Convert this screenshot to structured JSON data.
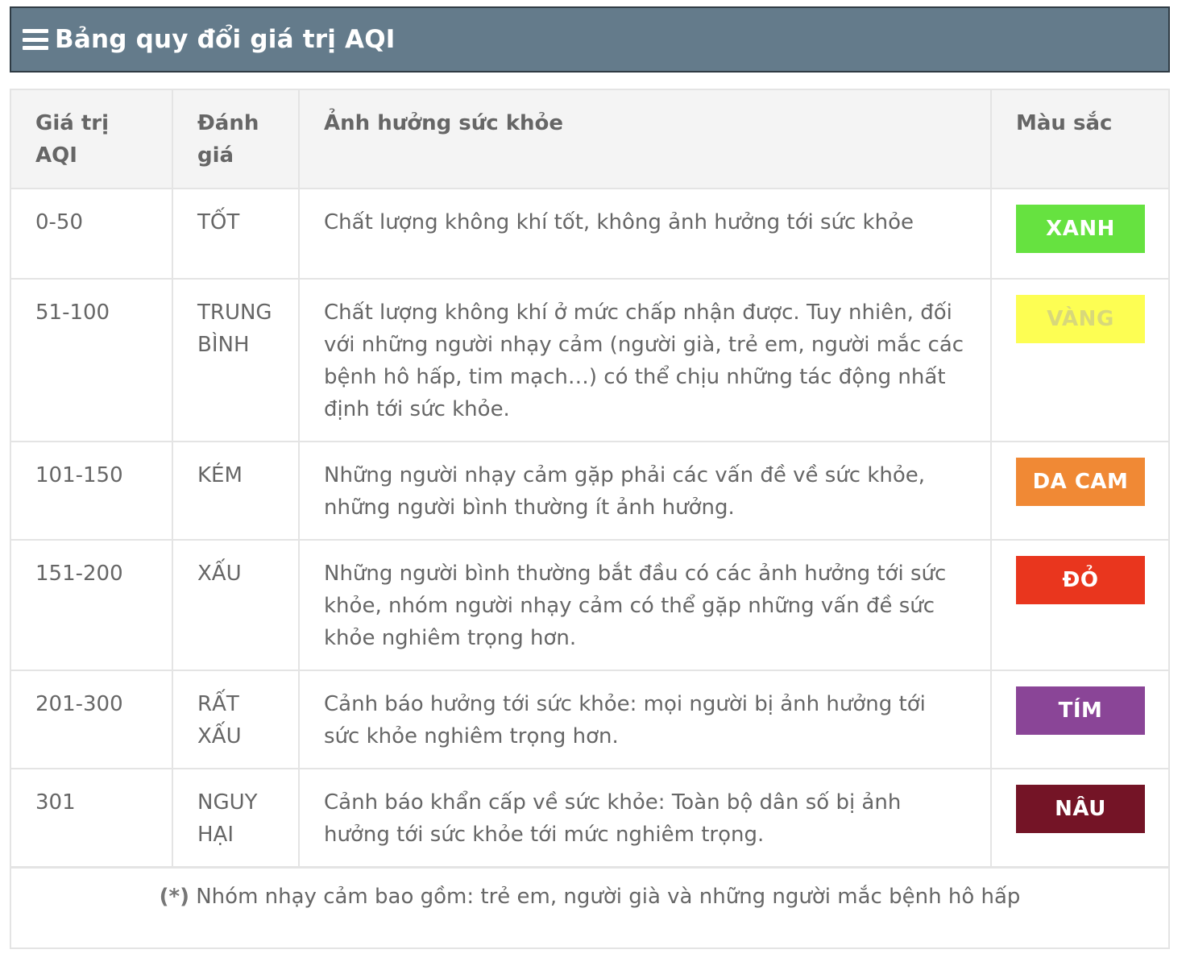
{
  "header": {
    "title": "Bảng quy đổi giá trị AQI",
    "icon": "menu-icon"
  },
  "table": {
    "columns": [
      "Giá trị AQI",
      "Đánh giá",
      "Ảnh hưởng sức khỏe",
      "Màu sắc"
    ],
    "rows": [
      {
        "range": "0-50",
        "rating": "TỐT",
        "effect": "Chất lượng không khí tốt, không ảnh hưởng tới sức khỏe",
        "color_label": "XANH",
        "color": "#66e240",
        "text_color": "#ffffff"
      },
      {
        "range": "51-100",
        "rating": "TRUNG BÌNH",
        "effect": "Chất lượng không khí ở mức chấp nhận được. Tuy nhiên, đối với những người nhạy cảm (người già, trẻ em, người mắc các bệnh hô hấp, tim mạch…) có thể chịu những tác động nhất định tới sức khỏe.",
        "color_label": "VÀNG",
        "color": "#fdfe53",
        "text_color": "#d8d87a"
      },
      {
        "range": "101-150",
        "rating": "KÉM",
        "effect": "Những người nhạy cảm gặp phải các vấn đề về sức khỏe, những người bình thường ít ảnh hưởng.",
        "color_label": "DA CAM",
        "color": "#f08935",
        "text_color": "#ffffff"
      },
      {
        "range": "151-200",
        "rating": "XẤU",
        "effect": "Những người bình thường bắt đầu có các ảnh hưởng tới sức khỏe, nhóm người nhạy cảm có thể gặp những vấn đề sức khỏe nghiêm trọng hơn.",
        "color_label": "ĐỎ",
        "color": "#e9361e",
        "text_color": "#ffffff"
      },
      {
        "range": "201-300",
        "rating": "RẤT XẤU",
        "effect": "Cảnh báo hưởng tới sức khỏe: mọi người bị ảnh hưởng tới sức khỏe nghiêm trọng hơn.",
        "color_label": "TÍM",
        "color": "#8a4597",
        "text_color": "#ffffff"
      },
      {
        "range": "301",
        "rating": "NGUY HẠI",
        "effect": "Cảnh báo khẩn cấp về sức khỏe: Toàn bộ dân số bị ảnh hưởng tới sức khỏe tới mức nghiêm trọng.",
        "color_label": "NÂU",
        "color": "#741426",
        "text_color": "#ffffff"
      }
    ]
  },
  "footnote": {
    "marker": "(*)",
    "text": " Nhóm nhạy cảm bao gồm: trẻ em, người già và những người mắc bệnh hô hấp"
  }
}
